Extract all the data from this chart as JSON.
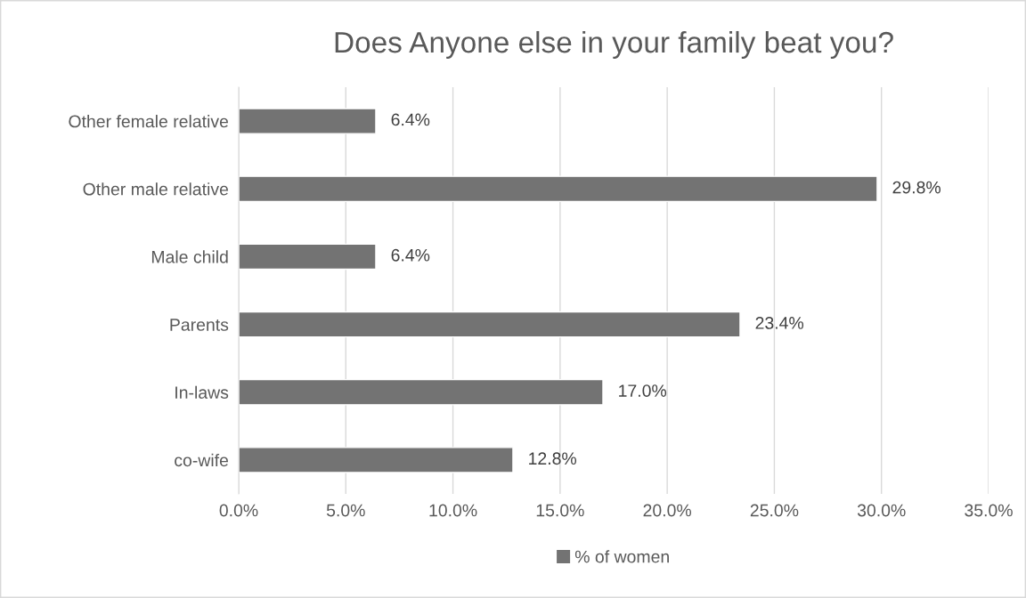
{
  "chart_data": {
    "type": "bar",
    "orientation": "horizontal",
    "title": "Does Anyone else in your family beat you?",
    "categories": [
      "Other female relative",
      "Other male relative",
      "Male child",
      "Parents",
      "In-laws",
      "co-wife"
    ],
    "series": [
      {
        "name": "% of women",
        "color": "#737373",
        "values": [
          6.4,
          29.8,
          6.4,
          23.4,
          17.0,
          12.8
        ],
        "value_labels": [
          "6.4%",
          "29.8%",
          "6.4%",
          "23.4%",
          "17.0%",
          "12.8%"
        ]
      }
    ],
    "xlim": [
      0,
      35
    ],
    "xticks": [
      {
        "value": 0,
        "label": "0.0%"
      },
      {
        "value": 5,
        "label": "5.0%"
      },
      {
        "value": 10,
        "label": "10.0%"
      },
      {
        "value": 15,
        "label": "15.0%"
      },
      {
        "value": 20,
        "label": "20.0%"
      },
      {
        "value": 25,
        "label": "25.0%"
      },
      {
        "value": 30,
        "label": "30.0%"
      },
      {
        "value": 35,
        "label": "35.0%"
      }
    ],
    "grid": "x",
    "legend": "bottom"
  }
}
